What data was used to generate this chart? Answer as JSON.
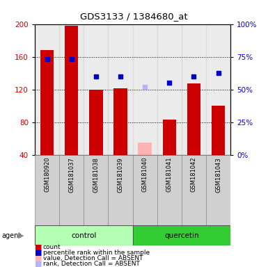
{
  "title": "GDS3133 / 1384680_at",
  "samples": [
    "GSM180920",
    "GSM181037",
    "GSM181038",
    "GSM181039",
    "GSM181040",
    "GSM181041",
    "GSM181042",
    "GSM181043"
  ],
  "groups": [
    "control",
    "control",
    "control",
    "control",
    "quercetin",
    "quercetin",
    "quercetin",
    "quercetin"
  ],
  "bar_values": [
    168,
    198,
    120,
    121,
    null,
    83,
    127,
    100
  ],
  "bar_absent_values": [
    null,
    null,
    null,
    null,
    55,
    null,
    null,
    null
  ],
  "rank_values": [
    157,
    157,
    136,
    136,
    null,
    128,
    136,
    140
  ],
  "rank_absent_values": [
    null,
    null,
    null,
    null,
    123,
    null,
    null,
    null
  ],
  "bar_color": "#cc0000",
  "bar_absent_color": "#ffb3b3",
  "rank_color": "#0000cc",
  "rank_absent_color": "#b3b3ff",
  "ylim_left": [
    40,
    200
  ],
  "right_ticks_pct": [
    0,
    25,
    50,
    75,
    100
  ],
  "group_colors": {
    "control": "#b3ffb3",
    "quercetin": "#33cc33"
  },
  "legend_items": [
    {
      "label": "count",
      "color": "#cc0000"
    },
    {
      "label": "percentile rank within the sample",
      "color": "#0000cc"
    },
    {
      "label": "value, Detection Call = ABSENT",
      "color": "#ffb3b3"
    },
    {
      "label": "rank, Detection Call = ABSENT",
      "color": "#b3b3ff"
    }
  ],
  "bar_width": 0.55
}
